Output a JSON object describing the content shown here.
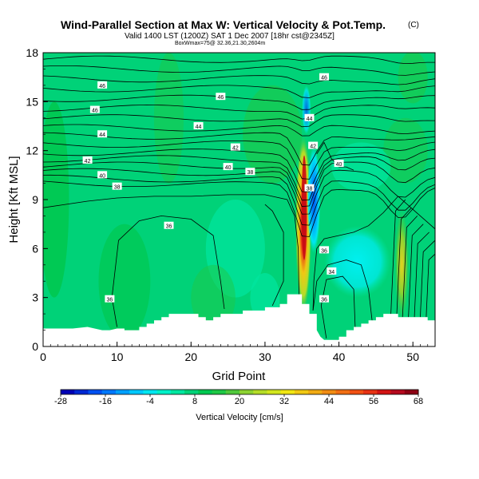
{
  "chart_data": {
    "type": "heatmap",
    "title": "Wind-Parallel Section at Max W: Vertical Velocity & Pot.Temp.",
    "title_mark": "(C)",
    "subtitle": "Valid 1400 LST (1200Z) SAT 1 Dec 2007 [18hr cst@2345Z]",
    "subtitle2": "BoxWmax=75@ 32.36,21.30,2604m",
    "xlabel": "Grid Point",
    "ylabel": "Height [Kft MSL]",
    "xlim": [
      0,
      53
    ],
    "ylim": [
      0,
      18
    ],
    "x_ticks": [
      0,
      10,
      20,
      30,
      40,
      50
    ],
    "y_ticks": [
      0,
      3,
      6,
      9,
      12,
      15,
      18
    ],
    "colorbar": {
      "label": "Vertical Velocity [cm/s]",
      "tick_labels": [
        "-28",
        "-16",
        "-4",
        "8",
        "20",
        "32",
        "44",
        "56",
        "68"
      ],
      "tick_values": [
        -28,
        -16,
        -4,
        8,
        20,
        32,
        44,
        56,
        68
      ],
      "colors": [
        "#0000b4",
        "#0028d2",
        "#0050f0",
        "#0078ff",
        "#00a0ff",
        "#00c8ff",
        "#00e6f0",
        "#00f0c8",
        "#00e6a0",
        "#00d278",
        "#00c850",
        "#1ec846",
        "#50c83c",
        "#8cd232",
        "#b4dc28",
        "#d2e61e",
        "#f0e614",
        "#f0c814",
        "#f0aa14",
        "#f08c14",
        "#f06e14",
        "#f05014",
        "#e63214",
        "#d21414",
        "#b40a1e",
        "#8c0014"
      ]
    },
    "contour_labels": [
      {
        "text": "46",
        "x": 8,
        "y": 16.0
      },
      {
        "text": "46",
        "x": 38,
        "y": 16.5
      },
      {
        "text": "46",
        "x": 24,
        "y": 15.3
      },
      {
        "text": "46",
        "x": 7,
        "y": 14.5
      },
      {
        "text": "44",
        "x": 8,
        "y": 13.0
      },
      {
        "text": "44",
        "x": 21,
        "y": 13.5
      },
      {
        "text": "44",
        "x": 36,
        "y": 14.0
      },
      {
        "text": "42",
        "x": 26,
        "y": 12.2
      },
      {
        "text": "42",
        "x": 6,
        "y": 11.4
      },
      {
        "text": "42",
        "x": 36.5,
        "y": 12.3
      },
      {
        "text": "40",
        "x": 8,
        "y": 10.5
      },
      {
        "text": "40",
        "x": 25,
        "y": 11.0
      },
      {
        "text": "40",
        "x": 40,
        "y": 11.2
      },
      {
        "text": "38",
        "x": 10,
        "y": 9.8
      },
      {
        "text": "38",
        "x": 28,
        "y": 10.7
      },
      {
        "text": "38",
        "x": 36,
        "y": 9.7
      },
      {
        "text": "36",
        "x": 17,
        "y": 7.4
      },
      {
        "text": "36",
        "x": 9,
        "y": 2.9
      },
      {
        "text": "36",
        "x": 38,
        "y": 2.9
      },
      {
        "text": "36",
        "x": 38,
        "y": 5.9
      },
      {
        "text": "34",
        "x": 39,
        "y": 4.6
      }
    ]
  }
}
